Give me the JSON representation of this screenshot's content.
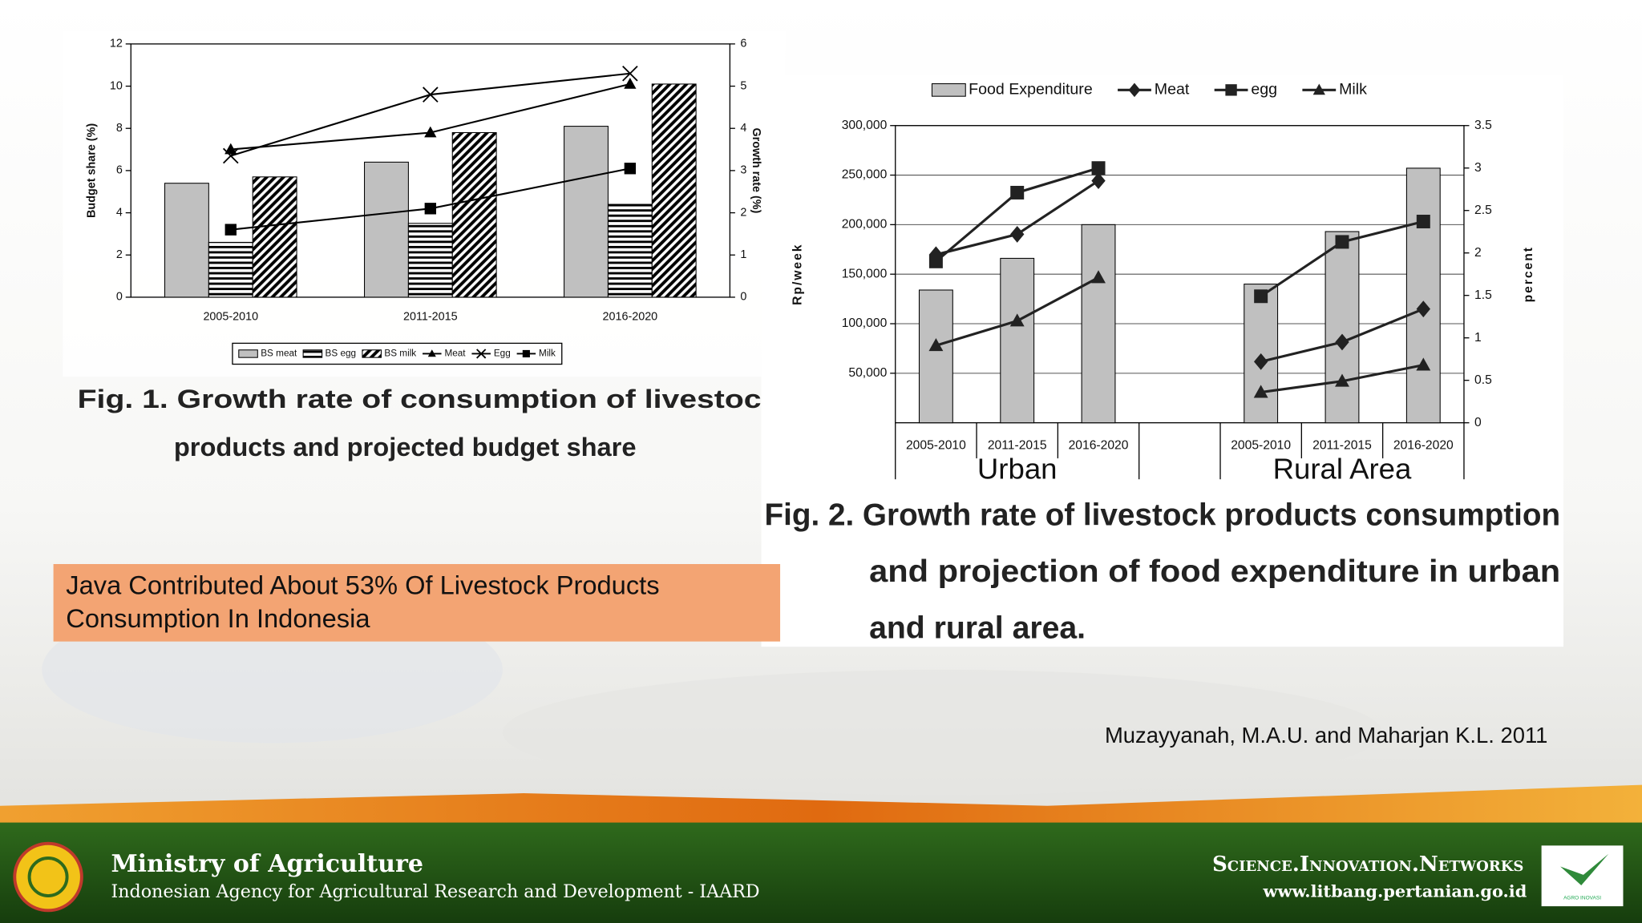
{
  "chart_data": [
    {
      "type": "bar-line",
      "y_label": "Budget share (%)",
      "y2_label": "Growth rate (%)",
      "categories": [
        "2005-2010",
        "2011-2015",
        "2016-2020"
      ],
      "series": [
        {
          "name": "BS meat",
          "color": "#c0c0c0",
          "values": [
            5.4,
            6.4,
            8.1
          ]
        },
        {
          "name": "BS egg",
          "color": "#000000",
          "pattern": "horizontal",
          "values": [
            2.6,
            3.5,
            4.4
          ]
        },
        {
          "name": "BS milk",
          "color": "#000000",
          "pattern": "diagonal",
          "values": [
            5.7,
            7.8,
            10.1
          ]
        },
        {
          "name": "Meat",
          "color": "#000000",
          "marker": "triangle",
          "axis": "y2",
          "values": [
            3.5,
            3.9,
            5.05
          ]
        },
        {
          "name": "Egg",
          "color": "#000000",
          "marker": "x",
          "axis": "y2",
          "values": [
            3.35,
            4.8,
            5.3
          ]
        },
        {
          "name": "Milk",
          "color": "#000000",
          "marker": "square",
          "axis": "y2",
          "values": [
            1.6,
            2.1,
            3.05
          ]
        }
      ],
      "ylim": [
        0,
        12
      ],
      "yticks": [
        0,
        2,
        4,
        6,
        8,
        10,
        12
      ],
      "y2lim": [
        0,
        6
      ],
      "y2ticks": [
        0,
        1,
        2,
        3,
        4,
        5,
        6
      ],
      "grid": false,
      "legend": "bottom",
      "caption": [
        "Fig. 1. Growth rate of consumption of livestoc",
        "products and projected budget share"
      ]
    },
    {
      "type": "bar-line",
      "y_label": "Rp/week",
      "y2_label": "percent",
      "groups": [
        {
          "label": "Urban",
          "categories": [
            "2005-2010",
            "2011-2015",
            "2016-2020"
          ]
        },
        {
          "label": "Rural Area",
          "categories": [
            "2005-2010",
            "2011-2015",
            "2016-2020"
          ]
        }
      ],
      "series": [
        {
          "name": "Food Expenditure",
          "color": "#c0c0c0",
          "values": [
            134000,
            166000,
            200000,
            140000,
            193000,
            257000
          ]
        },
        {
          "name": "Meat",
          "color": "#222222",
          "marker": "diamond",
          "axis": "y2",
          "values": [
            1.98,
            2.22,
            2.85,
            0.72,
            0.95,
            1.34
          ]
        },
        {
          "name": "egg",
          "color": "#222222",
          "marker": "square",
          "axis": "y2",
          "values": [
            1.9,
            2.71,
            3.0,
            1.49,
            2.13,
            2.37
          ]
        },
        {
          "name": "Milk",
          "color": "#222222",
          "marker": "triangle",
          "axis": "y2",
          "values": [
            0.91,
            1.2,
            1.71,
            0.36,
            0.49,
            0.68
          ]
        }
      ],
      "ylim": [
        0,
        300000
      ],
      "yticks": [
        {
          "value": 50000,
          "label": "50,000"
        },
        {
          "value": 100000,
          "label": "100,000"
        },
        {
          "value": 150000,
          "label": "150,000"
        },
        {
          "value": 200000,
          "label": "200,000"
        },
        {
          "value": 250000,
          "label": "250,000"
        },
        {
          "value": 300000,
          "label": "300,000"
        }
      ],
      "y2lim": [
        0,
        3.5
      ],
      "y2ticks": [
        0,
        0.5,
        1,
        1.5,
        2,
        2.5,
        3,
        3.5
      ],
      "grid": true,
      "legend": "top",
      "caption": [
        "Fig. 2. Growth rate of livestock products consumption",
        "and projection of food expenditure in urban",
        "and rural area."
      ]
    }
  ],
  "highlight": [
    "Java Contributed About 53% Of Livestock Products",
    "Consumption In Indonesia"
  ],
  "citation": "Muzayyanah, M.A.U. and Maharjan K.L. 2011",
  "footer": {
    "ministry": "Ministry of Agriculture",
    "agency": "Indonesian Agency for Agricultural Research and Development - IAARD",
    "tagline": "Science.Innovation.Networks",
    "url": "www.litbang.pertanian.go.id",
    "logo_text": "AGRO INOVASI"
  }
}
